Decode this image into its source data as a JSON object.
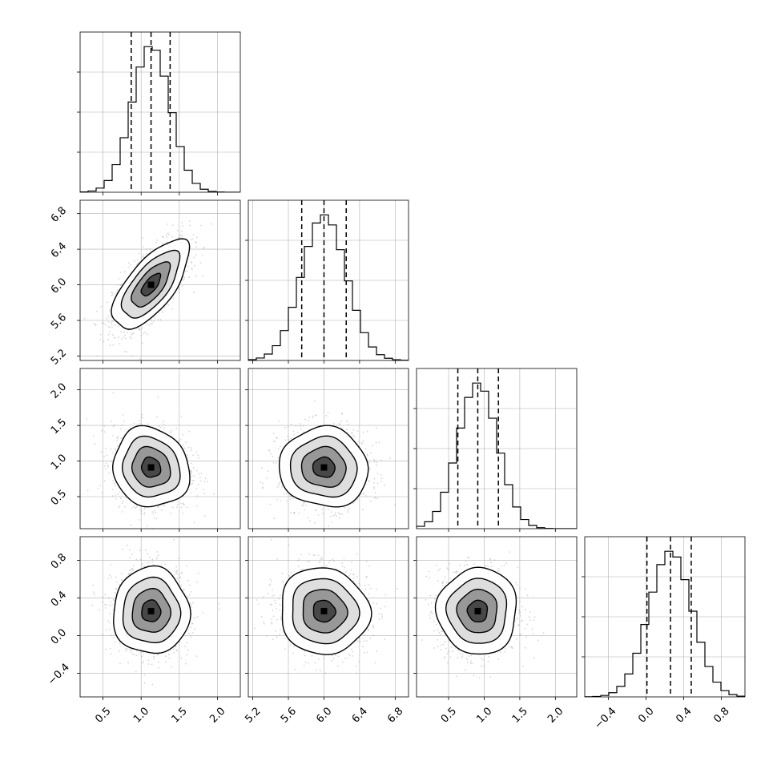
{
  "chart_data": {
    "type": "corner",
    "title": "",
    "n_params": 4,
    "params": [
      {
        "label": "",
        "lim": [
          0.2,
          2.3
        ],
        "ticks": [
          0.5,
          1.0,
          1.5,
          2.0
        ],
        "tick_labels": [
          "0.5",
          "1.0",
          "1.5",
          "2.0"
        ],
        "quantiles": [
          0.87,
          1.13,
          1.38
        ],
        "mean": 1.13,
        "sd": 0.25
      },
      {
        "label": "",
        "lim": [
          5.15,
          6.95
        ],
        "ticks": [
          5.2,
          5.6,
          6.0,
          6.4,
          6.8
        ],
        "tick_labels": [
          "5.2",
          "5.6",
          "6.0",
          "6.4",
          "6.8"
        ],
        "quantiles": [
          5.75,
          6.0,
          6.25
        ],
        "mean": 6.0,
        "sd": 0.25
      },
      {
        "label": "",
        "lim": [
          0.05,
          2.3
        ],
        "ticks": [
          0.5,
          1.0,
          1.5,
          2.0
        ],
        "tick_labels": [
          "0.5",
          "1.0",
          "1.5",
          "2.0"
        ],
        "quantiles": [
          0.63,
          0.91,
          1.2
        ],
        "mean": 0.91,
        "sd": 0.28
      },
      {
        "label": "",
        "lim": [
          -0.65,
          1.05
        ],
        "ticks": [
          -0.4,
          0.0,
          0.4,
          0.8
        ],
        "tick_labels": [
          "−0.4",
          "0.0",
          "0.4",
          "0.8"
        ],
        "quantiles": [
          0.01,
          0.26,
          0.48
        ],
        "mean": 0.26,
        "sd": 0.23
      }
    ],
    "correlations": [
      {
        "i": 0,
        "j": 1,
        "rho": 0.68
      },
      {
        "i": 0,
        "j": 2,
        "rho": -0.1
      },
      {
        "i": 1,
        "j": 2,
        "rho": -0.05
      },
      {
        "i": 0,
        "j": 3,
        "rho": 0.0
      },
      {
        "i": 1,
        "j": 3,
        "rho": -0.05
      },
      {
        "i": 2,
        "j": 3,
        "rho": 0.0
      }
    ],
    "contour_sigma_levels": [
      0.5,
      1.0,
      1.5,
      2.0
    ],
    "colors": {
      "scatter": "#8a8a8a",
      "line": "#000000",
      "grid": "#b0b0b0"
    },
    "grid": true,
    "n_bins": 20
  }
}
